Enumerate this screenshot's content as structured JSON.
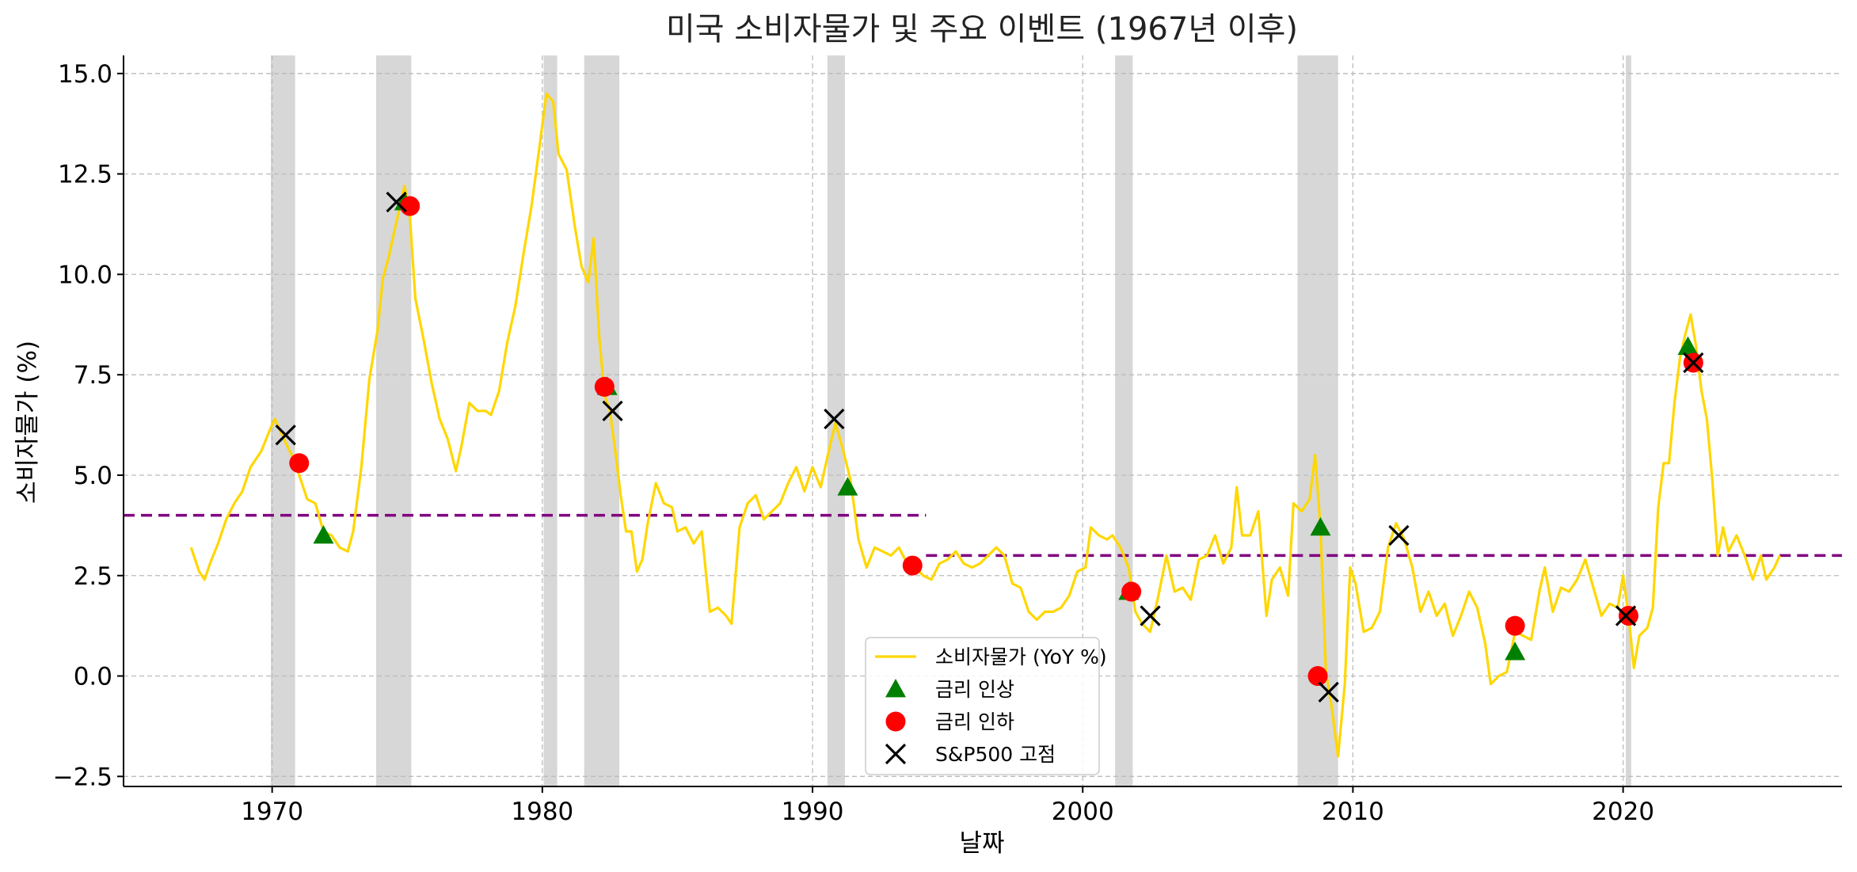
{
  "chart_data": {
    "type": "line",
    "title": "미국 소비자물가 및 주요 이벤트 (1967년 이후)",
    "xlabel": "날짜",
    "ylabel": "소비자물가 (%)",
    "xlim": [
      1964.5,
      2028.1
    ],
    "ylim": [
      -2.75,
      15.45
    ],
    "xticks": [
      1970,
      1980,
      1990,
      2000,
      2010,
      2020
    ],
    "yticks": [
      -2.5,
      0.0,
      2.5,
      5.0,
      7.5,
      10.0,
      12.5,
      15.0
    ],
    "ytick_labels": [
      "−2.5",
      "0.0",
      "2.5",
      "5.0",
      "7.5",
      "10.0",
      "12.5",
      "15.0"
    ],
    "grid": true,
    "legend_position": "bottom-center",
    "colors": {
      "cpi": "#FFD700",
      "rate_hike": "#008000",
      "rate_cut": "#FF0000",
      "sp500_peak": "#000000",
      "average": "#800080",
      "recession": "#D3D3D3"
    },
    "recessions": [
      [
        1969.95,
        1970.85
      ],
      [
        1973.85,
        1975.15
      ],
      [
        1980.05,
        1980.55
      ],
      [
        1981.55,
        1982.85
      ],
      [
        1990.55,
        1991.2
      ],
      [
        2001.2,
        2001.85
      ],
      [
        2007.95,
        2009.45
      ],
      [
        2020.1,
        2020.3
      ]
    ],
    "average_lines": [
      {
        "x": [
          1964.5,
          1994.2
        ],
        "y": 4.0
      },
      {
        "x": [
          1994.2,
          2028.1
        ],
        "y": 3.0
      }
    ],
    "series": [
      {
        "name": "소비자물가 (YoY %)",
        "points": [
          [
            1967.0,
            3.2
          ],
          [
            1967.3,
            2.6
          ],
          [
            1967.5,
            2.4
          ],
          [
            1967.7,
            2.8
          ],
          [
            1968.0,
            3.3
          ],
          [
            1968.3,
            3.9
          ],
          [
            1968.6,
            4.3
          ],
          [
            1968.9,
            4.6
          ],
          [
            1969.2,
            5.2
          ],
          [
            1969.6,
            5.6
          ],
          [
            1969.9,
            6.1
          ],
          [
            1970.1,
            6.4
          ],
          [
            1970.5,
            5.8
          ],
          [
            1970.8,
            5.4
          ],
          [
            1971.0,
            5.0
          ],
          [
            1971.3,
            4.4
          ],
          [
            1971.6,
            4.3
          ],
          [
            1971.9,
            3.6
          ],
          [
            1972.2,
            3.5
          ],
          [
            1972.5,
            3.2
          ],
          [
            1972.8,
            3.1
          ],
          [
            1973.0,
            3.6
          ],
          [
            1973.3,
            5.2
          ],
          [
            1973.6,
            7.4
          ],
          [
            1973.9,
            8.6
          ],
          [
            1974.1,
            9.9
          ],
          [
            1974.3,
            10.4
          ],
          [
            1974.6,
            11.3
          ],
          [
            1974.9,
            12.2
          ],
          [
            1975.1,
            11.4
          ],
          [
            1975.3,
            9.4
          ],
          [
            1975.6,
            8.4
          ],
          [
            1975.9,
            7.3
          ],
          [
            1976.2,
            6.4
          ],
          [
            1976.5,
            5.9
          ],
          [
            1976.8,
            5.1
          ],
          [
            1977.0,
            5.7
          ],
          [
            1977.3,
            6.8
          ],
          [
            1977.6,
            6.6
          ],
          [
            1977.9,
            6.6
          ],
          [
            1978.1,
            6.5
          ],
          [
            1978.4,
            7.1
          ],
          [
            1978.7,
            8.3
          ],
          [
            1979.0,
            9.2
          ],
          [
            1979.3,
            10.5
          ],
          [
            1979.6,
            11.7
          ],
          [
            1979.9,
            13.2
          ],
          [
            1980.15,
            14.5
          ],
          [
            1980.4,
            14.3
          ],
          [
            1980.6,
            13.0
          ],
          [
            1980.9,
            12.6
          ],
          [
            1981.2,
            11.2
          ],
          [
            1981.45,
            10.2
          ],
          [
            1981.7,
            9.8
          ],
          [
            1981.9,
            10.9
          ],
          [
            1982.1,
            8.5
          ],
          [
            1982.3,
            7.0
          ],
          [
            1982.5,
            6.6
          ],
          [
            1982.7,
            5.6
          ],
          [
            1982.9,
            4.5
          ],
          [
            1983.1,
            3.6
          ],
          [
            1983.3,
            3.6
          ],
          [
            1983.5,
            2.6
          ],
          [
            1983.7,
            2.9
          ],
          [
            1983.9,
            3.8
          ],
          [
            1984.2,
            4.8
          ],
          [
            1984.5,
            4.3
          ],
          [
            1984.8,
            4.2
          ],
          [
            1985.0,
            3.6
          ],
          [
            1985.3,
            3.7
          ],
          [
            1985.6,
            3.3
          ],
          [
            1985.9,
            3.6
          ],
          [
            1986.2,
            1.6
          ],
          [
            1986.5,
            1.7
          ],
          [
            1986.8,
            1.5
          ],
          [
            1987.0,
            1.3
          ],
          [
            1987.3,
            3.7
          ],
          [
            1987.6,
            4.3
          ],
          [
            1987.9,
            4.5
          ],
          [
            1988.2,
            3.9
          ],
          [
            1988.5,
            4.1
          ],
          [
            1988.8,
            4.3
          ],
          [
            1989.1,
            4.8
          ],
          [
            1989.4,
            5.2
          ],
          [
            1989.7,
            4.6
          ],
          [
            1990.0,
            5.2
          ],
          [
            1990.3,
            4.7
          ],
          [
            1990.6,
            5.6
          ],
          [
            1990.85,
            6.3
          ],
          [
            1991.1,
            5.7
          ],
          [
            1991.4,
            4.9
          ],
          [
            1991.7,
            3.4
          ],
          [
            1992.0,
            2.7
          ],
          [
            1992.3,
            3.2
          ],
          [
            1992.6,
            3.1
          ],
          [
            1992.9,
            3.0
          ],
          [
            1993.2,
            3.2
          ],
          [
            1993.5,
            2.8
          ],
          [
            1993.8,
            2.7
          ],
          [
            1994.1,
            2.5
          ],
          [
            1994.4,
            2.4
          ],
          [
            1994.7,
            2.8
          ],
          [
            1995.0,
            2.9
          ],
          [
            1995.3,
            3.1
          ],
          [
            1995.6,
            2.8
          ],
          [
            1995.9,
            2.7
          ],
          [
            1996.2,
            2.8
          ],
          [
            1996.5,
            3.0
          ],
          [
            1996.8,
            3.2
          ],
          [
            1997.1,
            3.0
          ],
          [
            1997.4,
            2.3
          ],
          [
            1997.7,
            2.2
          ],
          [
            1998.0,
            1.6
          ],
          [
            1998.3,
            1.4
          ],
          [
            1998.6,
            1.6
          ],
          [
            1998.9,
            1.6
          ],
          [
            1999.2,
            1.7
          ],
          [
            1999.5,
            2.0
          ],
          [
            1999.8,
            2.6
          ],
          [
            2000.1,
            2.7
          ],
          [
            2000.3,
            3.7
          ],
          [
            2000.6,
            3.5
          ],
          [
            2000.9,
            3.4
          ],
          [
            2001.1,
            3.5
          ],
          [
            2001.4,
            3.2
          ],
          [
            2001.7,
            2.7
          ],
          [
            2001.95,
            1.6
          ],
          [
            2002.2,
            1.3
          ],
          [
            2002.5,
            1.1
          ],
          [
            2002.8,
            2.0
          ],
          [
            2003.1,
            3.0
          ],
          [
            2003.4,
            2.1
          ],
          [
            2003.7,
            2.2
          ],
          [
            2004.0,
            1.9
          ],
          [
            2004.3,
            2.9
          ],
          [
            2004.6,
            3.0
          ],
          [
            2004.9,
            3.5
          ],
          [
            2005.2,
            2.8
          ],
          [
            2005.5,
            3.2
          ],
          [
            2005.7,
            4.7
          ],
          [
            2005.9,
            3.5
          ],
          [
            2006.2,
            3.5
          ],
          [
            2006.5,
            4.1
          ],
          [
            2006.8,
            1.5
          ],
          [
            2007.0,
            2.4
          ],
          [
            2007.3,
            2.7
          ],
          [
            2007.6,
            2.0
          ],
          [
            2007.8,
            4.3
          ],
          [
            2008.1,
            4.1
          ],
          [
            2008.4,
            4.4
          ],
          [
            2008.6,
            5.5
          ],
          [
            2008.8,
            3.7
          ],
          [
            2009.0,
            0.1
          ],
          [
            2009.2,
            -0.7
          ],
          [
            2009.45,
            -2.0
          ],
          [
            2009.7,
            -0.2
          ],
          [
            2009.9,
            2.7
          ],
          [
            2010.1,
            2.3
          ],
          [
            2010.4,
            1.1
          ],
          [
            2010.7,
            1.2
          ],
          [
            2011.0,
            1.6
          ],
          [
            2011.3,
            3.2
          ],
          [
            2011.6,
            3.8
          ],
          [
            2011.9,
            3.4
          ],
          [
            2012.2,
            2.7
          ],
          [
            2012.5,
            1.6
          ],
          [
            2012.8,
            2.1
          ],
          [
            2013.1,
            1.5
          ],
          [
            2013.4,
            1.8
          ],
          [
            2013.7,
            1.0
          ],
          [
            2014.0,
            1.5
          ],
          [
            2014.3,
            2.1
          ],
          [
            2014.6,
            1.7
          ],
          [
            2014.9,
            0.8
          ],
          [
            2015.1,
            -0.2
          ],
          [
            2015.4,
            0.0
          ],
          [
            2015.7,
            0.1
          ],
          [
            2016.0,
            1.1
          ],
          [
            2016.3,
            1.0
          ],
          [
            2016.6,
            0.9
          ],
          [
            2016.9,
            2.1
          ],
          [
            2017.1,
            2.7
          ],
          [
            2017.4,
            1.6
          ],
          [
            2017.7,
            2.2
          ],
          [
            2018.0,
            2.1
          ],
          [
            2018.3,
            2.4
          ],
          [
            2018.6,
            2.9
          ],
          [
            2018.9,
            2.2
          ],
          [
            2019.2,
            1.5
          ],
          [
            2019.5,
            1.8
          ],
          [
            2019.8,
            1.7
          ],
          [
            2020.0,
            2.5
          ],
          [
            2020.2,
            1.5
          ],
          [
            2020.4,
            0.2
          ],
          [
            2020.6,
            1.0
          ],
          [
            2020.9,
            1.2
          ],
          [
            2021.1,
            1.7
          ],
          [
            2021.3,
            4.2
          ],
          [
            2021.5,
            5.3
          ],
          [
            2021.7,
            5.3
          ],
          [
            2021.9,
            6.8
          ],
          [
            2022.1,
            7.9
          ],
          [
            2022.3,
            8.5
          ],
          [
            2022.5,
            9.0
          ],
          [
            2022.7,
            8.2
          ],
          [
            2022.9,
            7.1
          ],
          [
            2023.1,
            6.4
          ],
          [
            2023.3,
            4.9
          ],
          [
            2023.5,
            3.0
          ],
          [
            2023.7,
            3.7
          ],
          [
            2023.9,
            3.1
          ],
          [
            2024.2,
            3.5
          ],
          [
            2024.5,
            3.0
          ],
          [
            2024.8,
            2.4
          ],
          [
            2025.1,
            3.0
          ],
          [
            2025.3,
            2.4
          ],
          [
            2025.6,
            2.7
          ],
          [
            2025.8,
            3.0
          ]
        ]
      },
      {
        "name": "금리 인상",
        "marker": "triangle",
        "points": [
          [
            1971.9,
            3.5
          ],
          [
            1974.9,
            11.8
          ],
          [
            1982.4,
            7.2
          ],
          [
            1991.3,
            4.7
          ],
          [
            2001.7,
            2.1
          ],
          [
            2008.8,
            3.7
          ],
          [
            2016.0,
            0.6
          ],
          [
            2022.4,
            8.2
          ]
        ]
      },
      {
        "name": "금리 인하",
        "marker": "circle",
        "points": [
          [
            1971.0,
            5.3
          ],
          [
            1975.1,
            11.7
          ],
          [
            1982.3,
            7.2
          ],
          [
            1993.7,
            2.75
          ],
          [
            2001.8,
            2.1
          ],
          [
            2008.7,
            0.0
          ],
          [
            2016.0,
            1.25
          ],
          [
            2020.2,
            1.5
          ],
          [
            2022.6,
            7.8
          ]
        ]
      },
      {
        "name": "S&P500 고점",
        "marker": "x",
        "points": [
          [
            1970.5,
            6.0
          ],
          [
            1974.6,
            11.8
          ],
          [
            1982.6,
            6.6
          ],
          [
            1990.8,
            6.4
          ],
          [
            2002.5,
            1.5
          ],
          [
            2009.1,
            -0.4
          ],
          [
            2011.7,
            3.5
          ],
          [
            2020.1,
            1.5
          ],
          [
            2022.6,
            7.8
          ]
        ]
      }
    ]
  }
}
